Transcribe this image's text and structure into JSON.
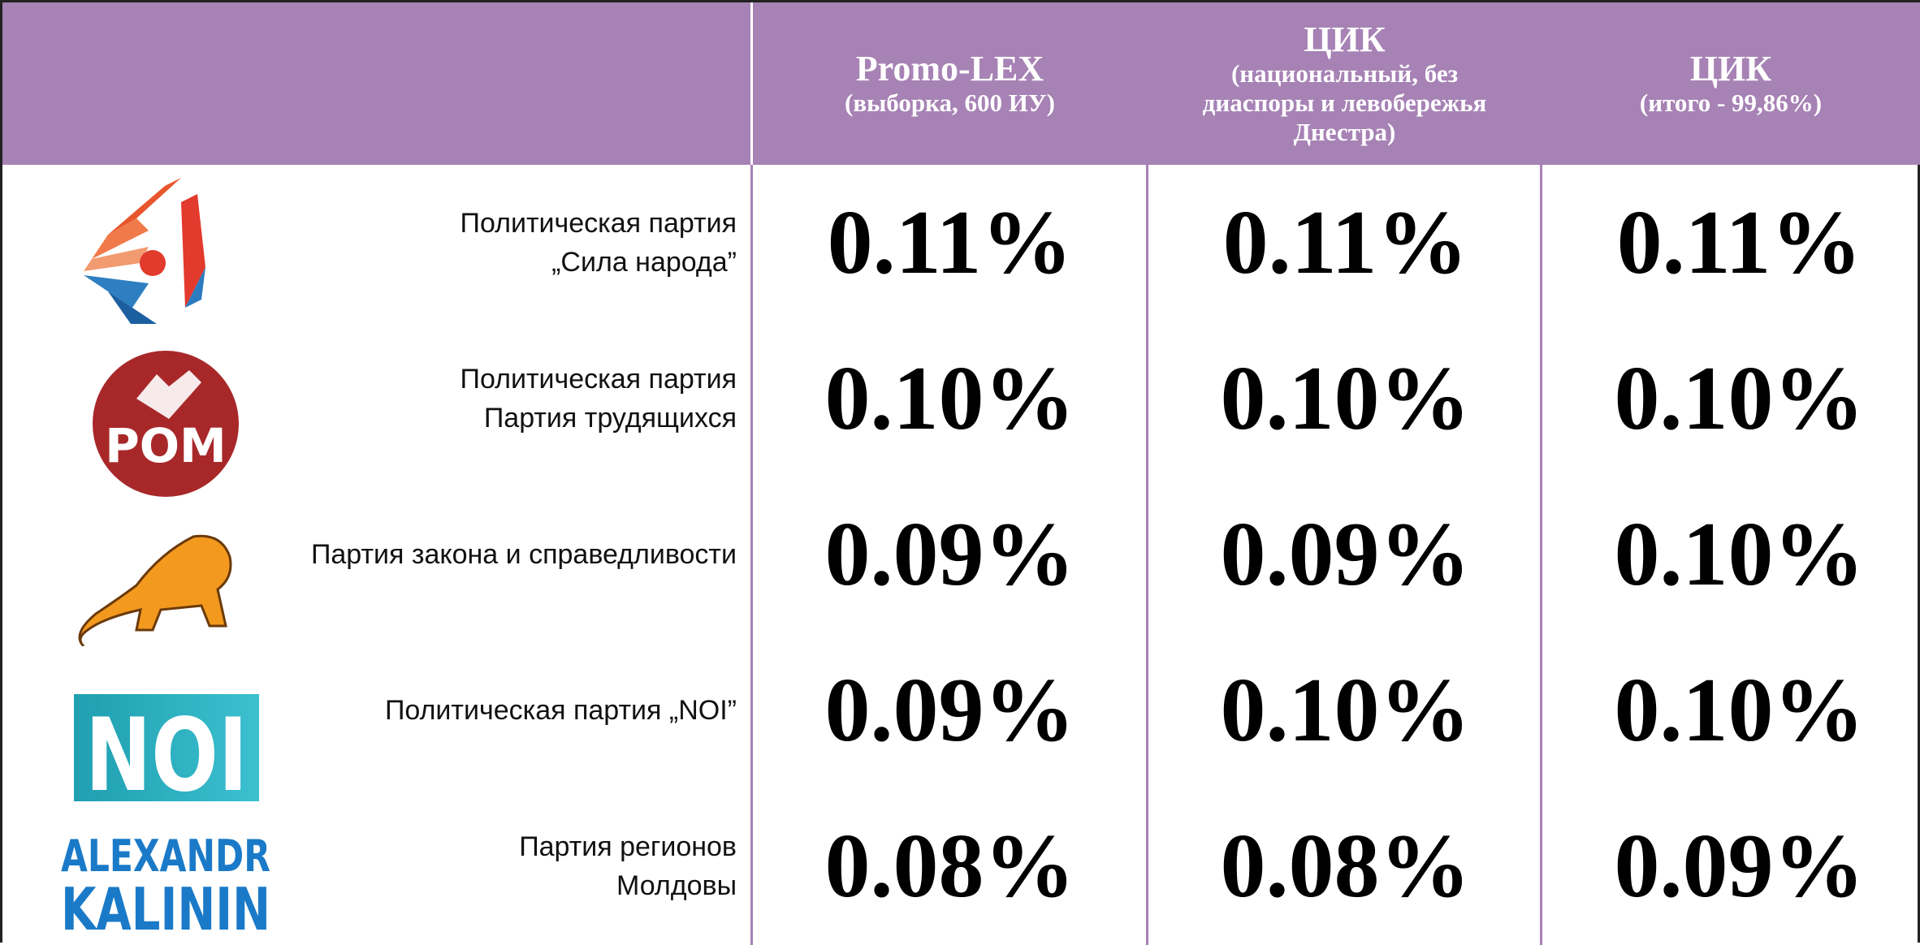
{
  "header": {
    "columns": [
      {
        "title": "Promo-LEX",
        "subtitle": "(выборка, 600 ИУ)"
      },
      {
        "title": "ЦИК",
        "subtitle": "(национальный, без диаспоры и левобережья Днестра)"
      },
      {
        "title": "ЦИК",
        "subtitle": "(итого - 99,86%)"
      }
    ]
  },
  "rows": [
    {
      "name_lines": [
        "Политическая партия",
        "„Сила народа”"
      ],
      "values": [
        "0.11%",
        "0.11%",
        "0.11%"
      ]
    },
    {
      "logo_text": "PОМ",
      "name_lines": [
        "Политическая партия",
        "Партия трудящихся"
      ],
      "values": [
        "0.10%",
        "0.10%",
        "0.10%"
      ]
    },
    {
      "name_lines": [
        "Партия закона и справедливости"
      ],
      "values": [
        "0.09%",
        "0.09%",
        "0.10%"
      ]
    },
    {
      "logo_text": "NOI",
      "name_lines": [
        "Политическая партия „NOI”"
      ],
      "values": [
        "0.09%",
        "0.10%",
        "0.10%"
      ]
    },
    {
      "logo_lines": [
        "ALEXANDR",
        "KALININ"
      ],
      "name_lines": [
        "Партия регионов",
        "Молдовы"
      ],
      "values": [
        "0.08%",
        "0.08%",
        "0.09%"
      ]
    }
  ]
}
